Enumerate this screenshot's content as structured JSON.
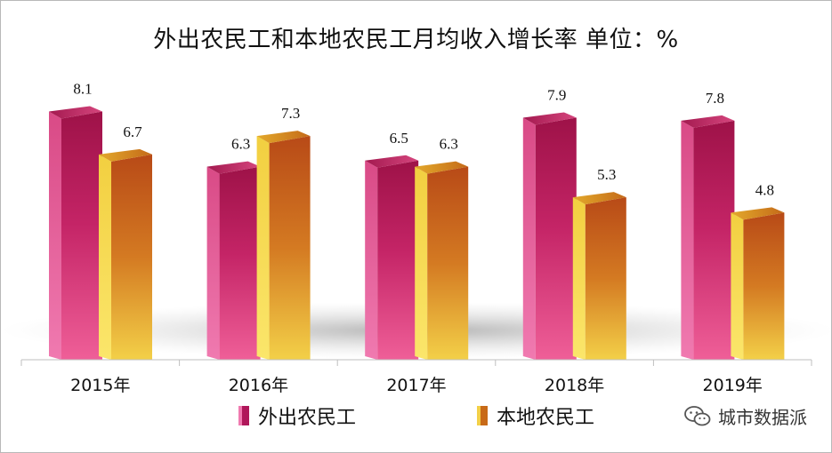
{
  "chart_data": {
    "type": "bar",
    "title": "外出农民工和本地农民工月均收入增长率 单位：%",
    "categories": [
      "2015年",
      "2016年",
      "2017年",
      "2018年",
      "2019年"
    ],
    "series": [
      {
        "name": "外出农民工",
        "values": [
          8.1,
          6.3,
          6.5,
          7.9,
          7.8
        ],
        "color": "#d63b7a"
      },
      {
        "name": "本地农民工",
        "values": [
          6.7,
          7.3,
          6.3,
          5.3,
          4.8
        ],
        "color": "#e39b1f"
      }
    ],
    "data_labels": [
      "8.1",
      "6.7",
      "6.3",
      "7.3",
      "6.5",
      "6.3",
      "7.9",
      "5.3",
      "7.8",
      "4.8"
    ],
    "ylim": [
      0,
      9
    ],
    "grid": false,
    "legend_position": "bottom"
  },
  "watermark": {
    "text": "城市数据派",
    "icon": "wechat-icon"
  }
}
